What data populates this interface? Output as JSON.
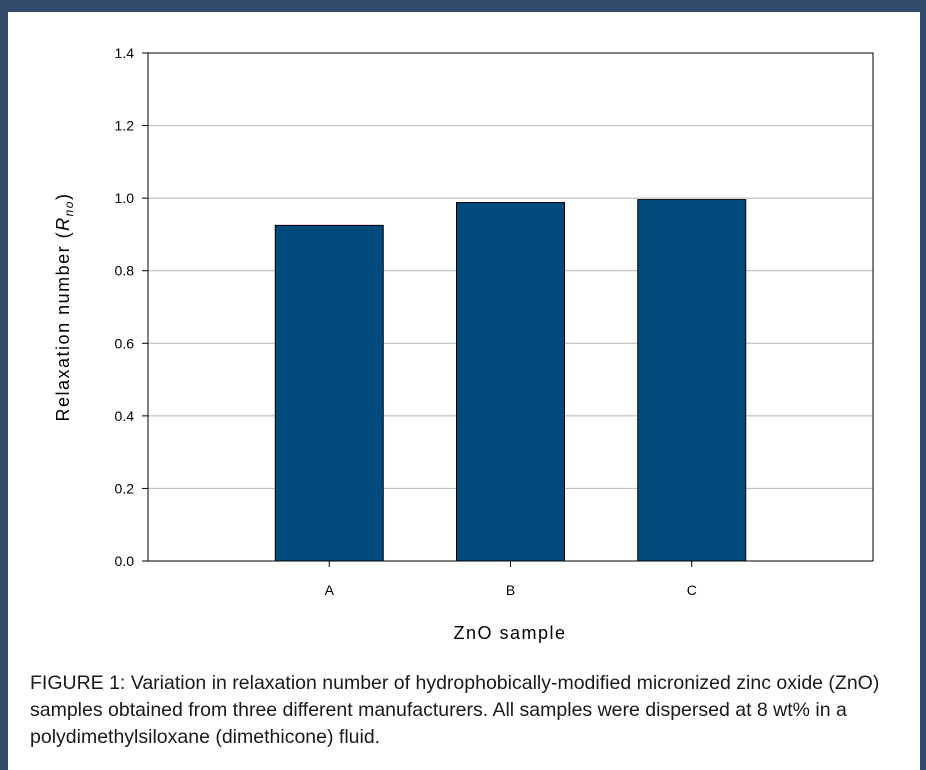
{
  "chart_data": {
    "type": "bar",
    "categories": [
      "A",
      "B",
      "C"
    ],
    "values": [
      0.925,
      0.988,
      0.996
    ],
    "xlabel": "ZnO sample",
    "ylabel_prefix": "Relaxation number (",
    "ylabel_symbol": "R",
    "ylabel_subscript": "no",
    "ylabel_suffix": ")",
    "ylim": [
      0,
      1.4
    ],
    "yticks": [
      "0.0",
      "0.2",
      "0.4",
      "0.6",
      "0.8",
      "1.0",
      "1.2",
      "1.4"
    ],
    "grid": true,
    "bar_color": "#004b7d"
  },
  "caption": "FIGURE 1: Variation in relaxation number of hydrophobically-modified micronized zinc oxide (ZnO) samples obtained from three different manufacturers. All samples were dispersed at 8 wt% in a polydimethylsiloxane (dimethicone) fluid."
}
